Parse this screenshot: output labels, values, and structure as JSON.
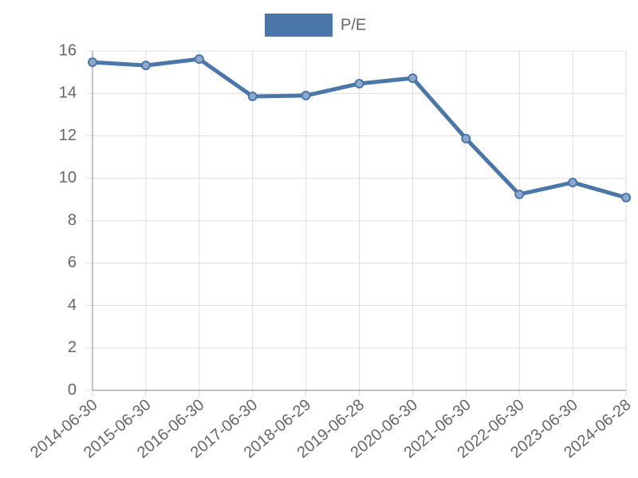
{
  "chart_data": {
    "type": "line",
    "categories": [
      "2014-06-30",
      "2015-06-30",
      "2016-06-30",
      "2017-06-30",
      "2018-06-29",
      "2019-06-28",
      "2020-06-30",
      "2021-06-30",
      "2022-06-30",
      "2023-06-30",
      "2024-06-28"
    ],
    "series": [
      {
        "name": "P/E",
        "color": "#4a76a8",
        "values": [
          15.47,
          15.32,
          15.62,
          13.86,
          13.9,
          14.46,
          14.72,
          11.87,
          9.24,
          9.8,
          9.09
        ]
      }
    ],
    "ylim": [
      0,
      16
    ],
    "yticks": [
      0,
      2,
      4,
      6,
      8,
      10,
      12,
      14,
      16
    ],
    "grid": true,
    "legend": "top"
  }
}
